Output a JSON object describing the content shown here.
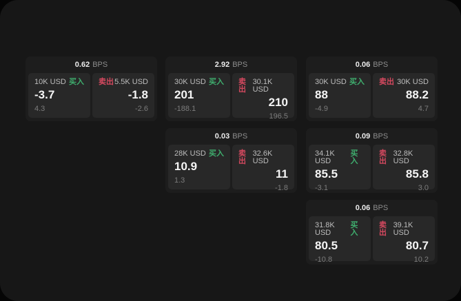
{
  "colors": {
    "buy": "#3fae6e",
    "sell": "#d5495f"
  },
  "labels": {
    "buy_side": "买入",
    "sell_side": "卖出",
    "bps_unit": "BPS"
  },
  "cards": [
    {
      "bps_value": "0.62",
      "buy": {
        "amount": "10K USD",
        "price": "-3.7",
        "delta": "4.3"
      },
      "sell": {
        "amount": "5.5K USD",
        "price": "-1.8",
        "delta": "-2.6"
      }
    },
    {
      "bps_value": "2.92",
      "buy": {
        "amount": "30K USD",
        "price": "201",
        "delta": "-188.1"
      },
      "sell": {
        "amount": "30.1K USD",
        "price": "210",
        "delta": "196.5"
      }
    },
    {
      "bps_value": "0.06",
      "buy": {
        "amount": "30K USD",
        "price": "88",
        "delta": "-4.9"
      },
      "sell": {
        "amount": "30K USD",
        "price": "88.2",
        "delta": "4.7"
      }
    },
    {
      "bps_value": "0.03",
      "buy": {
        "amount": "28K USD",
        "price": "10.9",
        "delta": "1.3"
      },
      "sell": {
        "amount": "32.6K USD",
        "price": "11",
        "delta": "-1.8"
      }
    },
    {
      "bps_value": "0.09",
      "buy": {
        "amount": "34.1K USD",
        "price": "85.5",
        "delta": "-3.1"
      },
      "sell": {
        "amount": "32.8K USD",
        "price": "85.8",
        "delta": "3.0"
      }
    },
    {
      "bps_value": "0.06",
      "buy": {
        "amount": "31.8K USD",
        "price": "80.5",
        "delta": "-10.8"
      },
      "sell": {
        "amount": "39.1K USD",
        "price": "80.7",
        "delta": "10.2"
      }
    }
  ]
}
